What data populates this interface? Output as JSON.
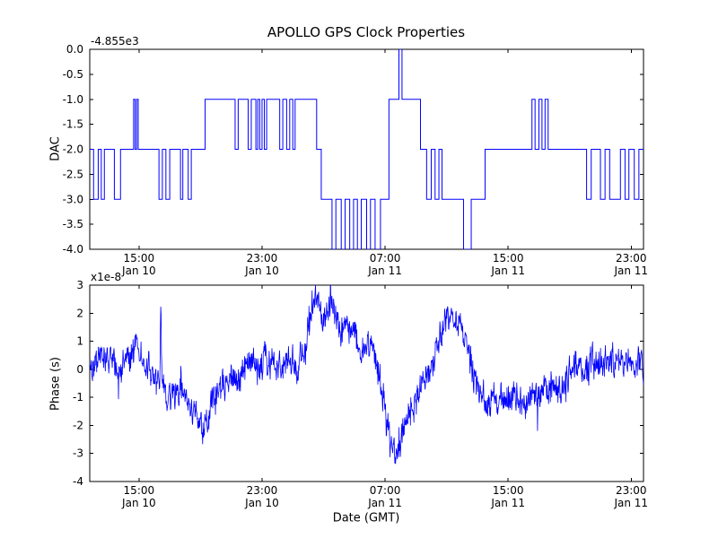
{
  "title": "APOLLO GPS Clock Properties",
  "xlabel": "Date (GMT)",
  "xlim": [
    0,
    36
  ],
  "x_ticks": [
    {
      "pos": 3.2,
      "time": "15:00",
      "date": "Jan 10"
    },
    {
      "pos": 11.2,
      "time": "23:00",
      "date": "Jan 10"
    },
    {
      "pos": 19.2,
      "time": "07:00",
      "date": "Jan 11"
    },
    {
      "pos": 27.2,
      "time": "15:00",
      "date": "Jan 11"
    },
    {
      "pos": 35.2,
      "time": "23:00",
      "date": "Jan 11"
    }
  ],
  "line_color": "#0000ff",
  "chart_data": [
    {
      "type": "line",
      "style": "step",
      "name": "dac",
      "ylabel": "DAC",
      "offset_label": "-4.855e3",
      "ylim": [
        -4,
        0
      ],
      "yticks": [
        [
          "0.0",
          0
        ],
        [
          "-0.5",
          -0.5
        ],
        [
          "-1.0",
          -1
        ],
        [
          "-1.5",
          -1.5
        ],
        [
          "-2.0",
          -2
        ],
        [
          "-2.5",
          -2.5
        ],
        [
          "-3.0",
          -3
        ],
        [
          "-3.5",
          -3.5
        ],
        [
          "-4.0",
          -4
        ]
      ],
      "steps": [
        [
          0,
          -2
        ],
        [
          0.25,
          -3
        ],
        [
          0.55,
          -2
        ],
        [
          0.75,
          -3
        ],
        [
          0.95,
          -2
        ],
        [
          1.6,
          -3
        ],
        [
          2.0,
          -2
        ],
        [
          2.85,
          -1
        ],
        [
          2.95,
          -2
        ],
        [
          3.05,
          -1
        ],
        [
          3.15,
          -2
        ],
        [
          4.5,
          -3
        ],
        [
          4.72,
          -2
        ],
        [
          4.95,
          -3
        ],
        [
          5.2,
          -2
        ],
        [
          5.9,
          -3
        ],
        [
          6.05,
          -2
        ],
        [
          6.4,
          -3
        ],
        [
          6.6,
          -2
        ],
        [
          7.5,
          -1
        ],
        [
          9.45,
          -2
        ],
        [
          9.65,
          -1
        ],
        [
          10.3,
          -2
        ],
        [
          10.5,
          -1
        ],
        [
          10.8,
          -2
        ],
        [
          10.92,
          -1
        ],
        [
          11.05,
          -2
        ],
        [
          11.2,
          -1
        ],
        [
          11.35,
          -2
        ],
        [
          11.5,
          -1
        ],
        [
          12.35,
          -2
        ],
        [
          12.55,
          -1
        ],
        [
          12.8,
          -2
        ],
        [
          13.0,
          -1
        ],
        [
          13.2,
          -2
        ],
        [
          13.35,
          -1
        ],
        [
          14.75,
          -2
        ],
        [
          15.05,
          -3
        ],
        [
          15.75,
          -4
        ],
        [
          16.0,
          -3
        ],
        [
          16.35,
          -4
        ],
        [
          16.6,
          -3
        ],
        [
          16.9,
          -4
        ],
        [
          17.15,
          -3
        ],
        [
          17.4,
          -4
        ],
        [
          17.65,
          -3
        ],
        [
          18.0,
          -4
        ],
        [
          18.25,
          -3
        ],
        [
          18.55,
          -4
        ],
        [
          18.9,
          -3
        ],
        [
          19.45,
          -1
        ],
        [
          20.1,
          0
        ],
        [
          20.3,
          -1
        ],
        [
          21.5,
          -2
        ],
        [
          21.9,
          -3
        ],
        [
          22.2,
          -2
        ],
        [
          22.45,
          -3
        ],
        [
          22.7,
          -2
        ],
        [
          22.9,
          -3
        ],
        [
          24.3,
          -4
        ],
        [
          24.8,
          -3
        ],
        [
          25.7,
          -2
        ],
        [
          28.75,
          -1
        ],
        [
          28.95,
          -2
        ],
        [
          29.2,
          -1
        ],
        [
          29.4,
          -2
        ],
        [
          29.6,
          -1
        ],
        [
          29.8,
          -2
        ],
        [
          32.3,
          -3
        ],
        [
          32.6,
          -2
        ],
        [
          33.2,
          -3
        ],
        [
          33.5,
          -2
        ],
        [
          33.8,
          -3
        ],
        [
          34.5,
          -2
        ],
        [
          34.8,
          -3
        ],
        [
          35.05,
          -2
        ],
        [
          35.4,
          -3
        ],
        [
          35.7,
          -2
        ],
        [
          36,
          -2
        ]
      ]
    },
    {
      "type": "line",
      "style": "noisy",
      "name": "phase",
      "ylabel": "Phase (s)",
      "offset_label": "x1e-8",
      "ylim": [
        -4,
        3
      ],
      "yticks": [
        [
          "3",
          3
        ],
        [
          "2",
          2
        ],
        [
          "1",
          1
        ],
        [
          "0",
          0
        ],
        [
          "-1",
          -1
        ],
        [
          "-2",
          -2
        ],
        [
          "-3",
          -3
        ],
        [
          "-4",
          -4
        ]
      ],
      "noise_amp": 0.42,
      "n_points": 1600,
      "seed": 42,
      "baseline": [
        [
          0,
          0.1
        ],
        [
          0.5,
          0.4
        ],
        [
          1,
          0.6
        ],
        [
          1.5,
          0.2
        ],
        [
          2,
          -0.1
        ],
        [
          2.5,
          0.3
        ],
        [
          3,
          0.9
        ],
        [
          3.5,
          0.3
        ],
        [
          4,
          -0.3
        ],
        [
          4.55,
          -0.5
        ],
        [
          4.62,
          2.3
        ],
        [
          4.7,
          -0.5
        ],
        [
          5,
          -0.9
        ],
        [
          5.5,
          -1.0
        ],
        [
          6,
          -0.7
        ],
        [
          6.5,
          -1.2
        ],
        [
          7,
          -1.9
        ],
        [
          7.3,
          -2.2
        ],
        [
          7.6,
          -1.8
        ],
        [
          8,
          -1.2
        ],
        [
          8.5,
          -0.6
        ],
        [
          9,
          -0.3
        ],
        [
          9.5,
          -0.4
        ],
        [
          10,
          -0.1
        ],
        [
          10.5,
          0.3
        ],
        [
          11,
          0.1
        ],
        [
          11.5,
          0.3
        ],
        [
          12,
          0.2
        ],
        [
          12.5,
          -0.1
        ],
        [
          13,
          0.3
        ],
        [
          13.5,
          0.1
        ],
        [
          14,
          0.8
        ],
        [
          14.4,
          2.3
        ],
        [
          14.7,
          2.5
        ],
        [
          15,
          2.1
        ],
        [
          15.3,
          1.9
        ],
        [
          15.7,
          2.2
        ],
        [
          16,
          1.8
        ],
        [
          16.5,
          1.3
        ],
        [
          17,
          1.6
        ],
        [
          17.5,
          0.9
        ],
        [
          18,
          0.6
        ],
        [
          18.3,
          0.9
        ],
        [
          18.6,
          0.3
        ],
        [
          19,
          -0.6
        ],
        [
          19.3,
          -1.8
        ],
        [
          19.6,
          -2.8
        ],
        [
          19.9,
          -3.2
        ],
        [
          20.1,
          -2.6
        ],
        [
          20.4,
          -2.2
        ],
        [
          20.8,
          -1.6
        ],
        [
          21.2,
          -1.1
        ],
        [
          21.6,
          -0.6
        ],
        [
          22,
          -0.1
        ],
        [
          22.4,
          0.4
        ],
        [
          22.8,
          1.1
        ],
        [
          23.2,
          1.7
        ],
        [
          23.5,
          1.9
        ],
        [
          23.8,
          1.6
        ],
        [
          24.2,
          1.3
        ],
        [
          24.6,
          0.8
        ],
        [
          25,
          -0.2
        ],
        [
          25.4,
          -0.9
        ],
        [
          25.8,
          -1.2
        ],
        [
          26.2,
          -1.0
        ],
        [
          26.6,
          -1.3
        ],
        [
          27,
          -1.0
        ],
        [
          27.4,
          -1.2
        ],
        [
          27.8,
          -0.9
        ],
        [
          28.2,
          -1.1
        ],
        [
          28.6,
          -0.9
        ],
        [
          29,
          -1.0
        ],
        [
          29.4,
          -0.7
        ],
        [
          29.8,
          -0.9
        ],
        [
          30.2,
          -0.5
        ],
        [
          30.6,
          -0.7
        ],
        [
          31,
          -0.3
        ],
        [
          31.4,
          -0.1
        ],
        [
          31.8,
          0.2
        ],
        [
          32.2,
          0.0
        ],
        [
          32.6,
          0.3
        ],
        [
          33,
          0.1
        ],
        [
          33.4,
          0.4
        ],
        [
          33.8,
          0.2
        ],
        [
          34.2,
          0.5
        ],
        [
          34.6,
          0.2
        ],
        [
          35,
          0.4
        ],
        [
          35.5,
          0.1
        ],
        [
          36,
          0.0
        ]
      ]
    }
  ]
}
